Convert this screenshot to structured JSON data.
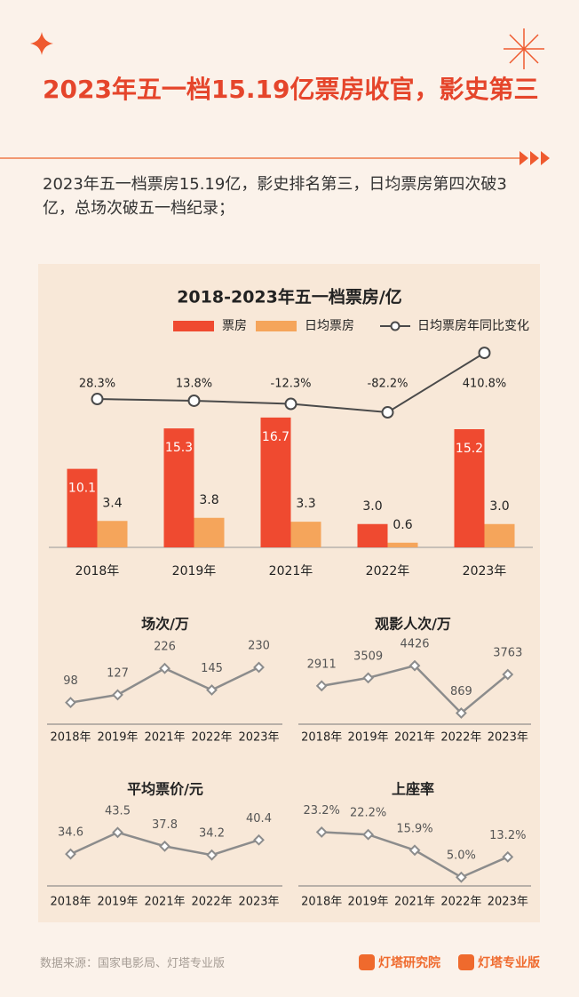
{
  "header": {
    "title": "2023年五一档15.19亿票房收官，影史第三",
    "subtitle": "2023年五一档票房15.19亿，影史排名第三，日均票房第四次破3亿，总场次破五一档纪录；"
  },
  "chart_data": [
    {
      "type": "bar",
      "title": "2018-2023年五一档票房/亿",
      "categories": [
        "2018年",
        "2019年",
        "2021年",
        "2022年",
        "2023年"
      ],
      "series": [
        {
          "name": "票房",
          "color": "#ef4a30",
          "values": [
            10.1,
            15.3,
            16.7,
            3.0,
            15.2
          ],
          "value_labels": [
            "10.1",
            "15.3",
            "16.7",
            "3.0",
            "15.2"
          ]
        },
        {
          "name": "日均票房",
          "color": "#f5a55b",
          "values": [
            3.4,
            3.8,
            3.3,
            0.6,
            3.0
          ],
          "value_labels": [
            "3.4",
            "3.8",
            "3.3",
            "0.6",
            "3.0"
          ]
        },
        {
          "name": "日均票房年同比变化",
          "type": "line",
          "axis": "y2",
          "color": "#4a4a4a",
          "values": [
            28.3,
            13.8,
            -12.3,
            -82.2,
            410.8
          ],
          "value_labels": [
            "28.3%",
            "13.8%",
            "-12.3%",
            "-82.2%",
            "410.8%"
          ]
        }
      ],
      "ylim": [
        0,
        20
      ],
      "y2lim": [
        -200,
        500
      ]
    },
    {
      "type": "line",
      "title": "场次/万",
      "categories": [
        "2018年",
        "2019年",
        "2021年",
        "2022年",
        "2023年"
      ],
      "values": [
        98,
        127,
        226,
        145,
        230
      ],
      "ylim": [
        40,
        240
      ],
      "color": "#8c8c8c"
    },
    {
      "type": "line",
      "title": "观影人次/万",
      "categories": [
        "2018年",
        "2019年",
        "2021年",
        "2022年",
        "2023年"
      ],
      "values": [
        2911,
        3509,
        4426,
        869,
        3763
      ],
      "ylim": [
        500,
        4500
      ],
      "color": "#8c8c8c"
    },
    {
      "type": "line",
      "title": "平均票价/元",
      "categories": [
        "2018年",
        "2019年",
        "2021年",
        "2022年",
        "2023年"
      ],
      "values": [
        34.6,
        43.5,
        37.8,
        34.2,
        40.4
      ],
      "ylim": [
        24,
        46
      ],
      "color": "#8c8c8c"
    },
    {
      "type": "line",
      "title": "上座率",
      "categories": [
        "2018年",
        "2019年",
        "2021年",
        "2022年",
        "2023年"
      ],
      "values": [
        23.2,
        22.2,
        15.9,
        5.0,
        13.2
      ],
      "value_labels": [
        "23.2%",
        "22.2%",
        "15.9%",
        "5.0%",
        "13.2%"
      ],
      "ylim": [
        4,
        25.5
      ],
      "color": "#8c8c8c"
    }
  ],
  "footer": {
    "source": "数据来源：国家电影局、灯塔专业版",
    "brands": [
      "灯塔研究院",
      "灯塔专业版"
    ]
  }
}
